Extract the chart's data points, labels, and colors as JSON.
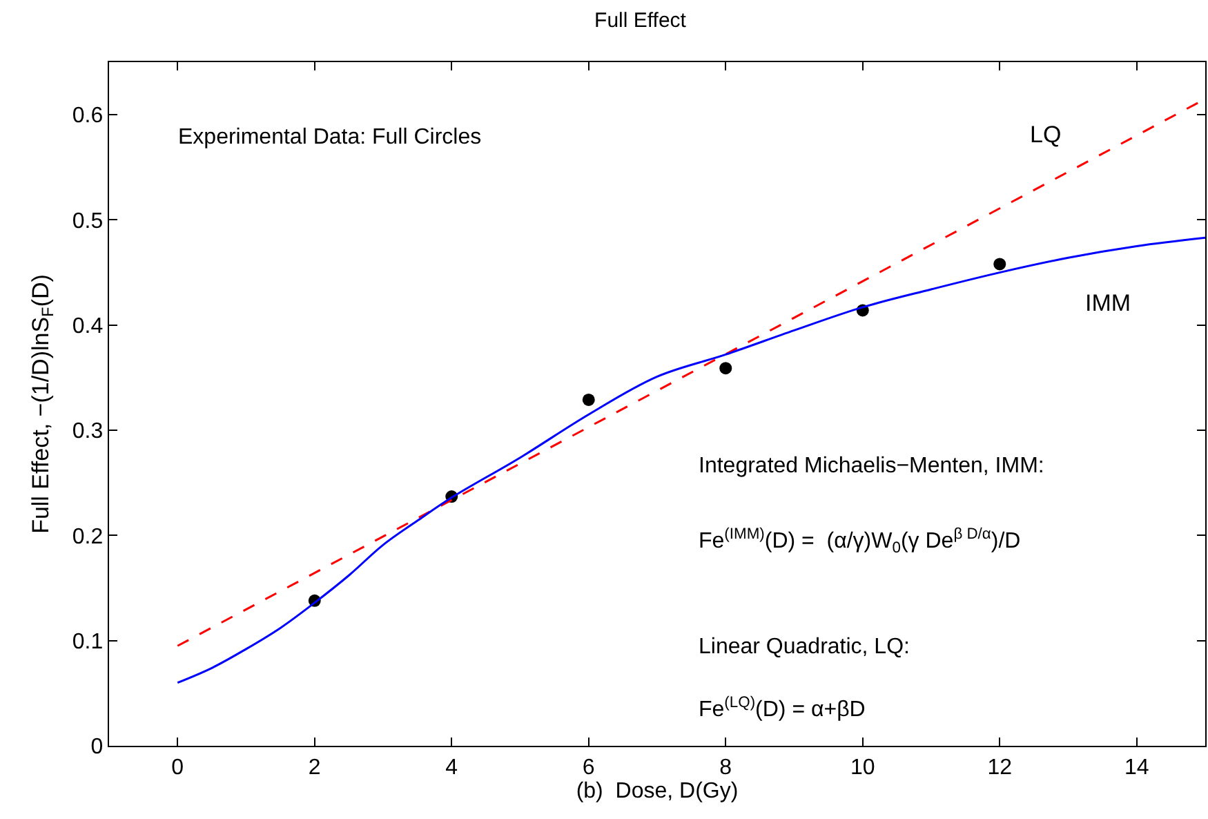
{
  "chart_data": {
    "type": "line",
    "title": "Full Effect",
    "xlabel": "(b)  Dose, D(Gy)",
    "ylabel": "Full Effect, −(1/D)lnS$_{F}$(D)",
    "xlim": [
      -1,
      15
    ],
    "xticks": [
      0,
      2,
      4,
      6,
      8,
      10,
      12,
      14
    ],
    "ylim": [
      0,
      0.65
    ],
    "yticks": [
      0,
      0.1,
      0.2,
      0.3,
      0.4,
      0.5,
      0.6
    ],
    "legend": false,
    "series": [
      {
        "type": "scatter",
        "color": "#000000",
        "marker": "circle",
        "x": [
          2,
          4,
          6,
          8,
          10,
          12
        ],
        "values": [
          0.138,
          0.237,
          0.329,
          0.359,
          0.414,
          0.458
        ]
      },
      {
        "name": "LQ",
        "color": "#ff0000",
        "line_style": "dashed",
        "x": [
          0,
          15
        ],
        "values": [
          0.095,
          0.615
        ]
      },
      {
        "name": "IMM",
        "color": "#0000ff",
        "line_style": "solid",
        "x": [
          0,
          0.5,
          1,
          1.5,
          2,
          2.5,
          3,
          3.5,
          4,
          5,
          6,
          7,
          8,
          9,
          10,
          11,
          12,
          13,
          14,
          15
        ],
        "values": [
          0.06,
          0.074,
          0.092,
          0.112,
          0.136,
          0.162,
          0.191,
          0.214,
          0.236,
          0.274,
          0.315,
          0.351,
          0.372,
          0.395,
          0.417,
          0.434,
          0.45,
          0.464,
          0.475,
          0.483
        ]
      }
    ],
    "annotations": [
      "Experimental Data: Full Circles",
      "Integrated Michaelis−Menten, IMM:",
      "Fe$^{(IMM)}$(D) =  (α/γ)W$_{0}$(γ De$^{β D/α}$)/D",
      "Linear Quadratic, LQ:",
      "Fe$^{(LQ)}$(D) = α+βD"
    ]
  }
}
